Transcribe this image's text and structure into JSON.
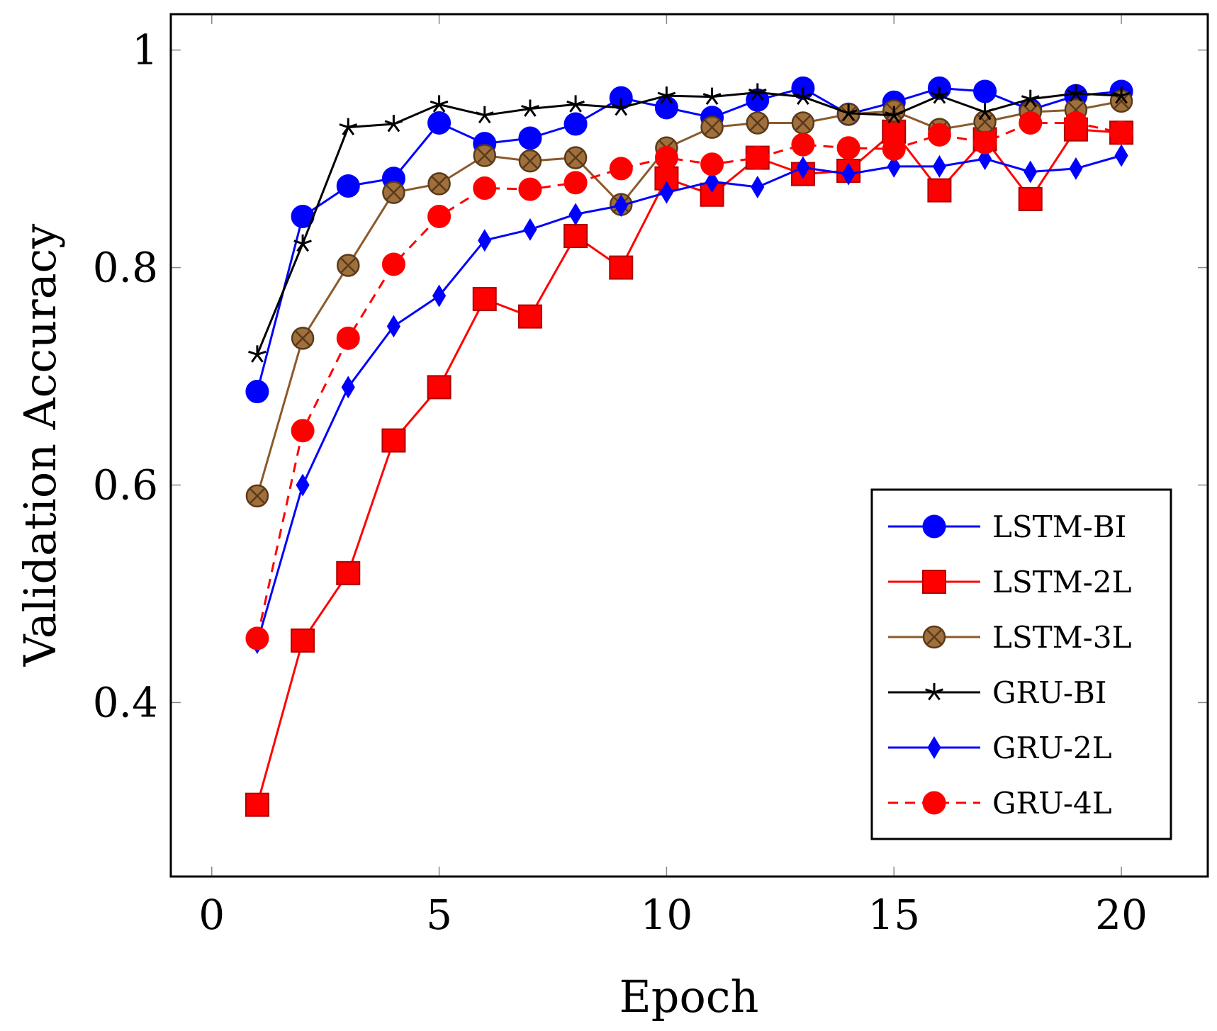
{
  "chart_data": {
    "type": "line",
    "title": "",
    "xlabel": "Epoch",
    "ylabel": "Validation Accuracy",
    "xlim": [
      -0.9,
      21.9
    ],
    "ylim": [
      0.24,
      1.033
    ],
    "xticks": [
      0,
      5,
      10,
      15,
      20
    ],
    "yticks": [
      0.4,
      0.6,
      0.8,
      1
    ],
    "xtick_labels": [
      "0",
      "5",
      "10",
      "15",
      "20"
    ],
    "ytick_labels": [
      "0.4",
      "0.6",
      "0.8",
      "1"
    ],
    "grid": false,
    "legend_position": "lower-right",
    "x": [
      1,
      2,
      3,
      4,
      5,
      6,
      7,
      8,
      9,
      10,
      11,
      12,
      13,
      14,
      15,
      16,
      17,
      18,
      19,
      20
    ],
    "series": [
      {
        "name": "LSTM-BI",
        "color": "#0000ff",
        "marker": "circle",
        "dash": "solid",
        "values": [
          0.686,
          0.847,
          0.875,
          0.882,
          0.933,
          0.914,
          0.919,
          0.932,
          0.956,
          0.947,
          0.938,
          0.954,
          0.965,
          0.941,
          0.952,
          0.965,
          0.962,
          0.945,
          0.958,
          0.962
        ]
      },
      {
        "name": "LSTM-2L",
        "color": "#ff0000",
        "marker": "square",
        "dash": "solid",
        "values": [
          0.306,
          0.457,
          0.519,
          0.641,
          0.69,
          0.771,
          0.755,
          0.829,
          0.8,
          0.882,
          0.867,
          0.901,
          0.886,
          0.889,
          0.925,
          0.871,
          0.918,
          0.863,
          0.927,
          0.924
        ]
      },
      {
        "name": "LSTM-3L",
        "color": "#8b5a2b",
        "marker": "otimes",
        "dash": "solid",
        "values": [
          0.59,
          0.735,
          0.802,
          0.869,
          0.877,
          0.903,
          0.898,
          0.901,
          0.858,
          0.91,
          0.929,
          0.933,
          0.933,
          0.941,
          0.944,
          0.927,
          0.934,
          0.943,
          0.945,
          0.953
        ]
      },
      {
        "name": "GRU-BI",
        "color": "#000000",
        "marker": "star",
        "dash": "solid",
        "values": [
          0.72,
          0.822,
          0.929,
          0.932,
          0.95,
          0.94,
          0.946,
          0.95,
          0.947,
          0.958,
          0.957,
          0.961,
          0.957,
          0.942,
          0.94,
          0.958,
          0.943,
          0.955,
          0.96,
          0.958
        ]
      },
      {
        "name": "GRU-2L",
        "color": "#0000ff",
        "marker": "diamond",
        "dash": "solid",
        "values": [
          0.455,
          0.6,
          0.69,
          0.746,
          0.774,
          0.825,
          0.835,
          0.849,
          0.857,
          0.869,
          0.879,
          0.874,
          0.892,
          0.886,
          0.893,
          0.893,
          0.9,
          0.888,
          0.891,
          0.903
        ]
      },
      {
        "name": "GRU-4L",
        "color": "#ff0000",
        "marker": "circle",
        "dash": "dashed",
        "values": [
          0.459,
          0.65,
          0.735,
          0.803,
          0.847,
          0.873,
          0.872,
          0.878,
          0.891,
          0.901,
          0.895,
          0.901,
          0.913,
          0.91,
          0.909,
          0.922,
          0.915,
          0.933,
          0.933,
          0.924
        ]
      }
    ]
  }
}
